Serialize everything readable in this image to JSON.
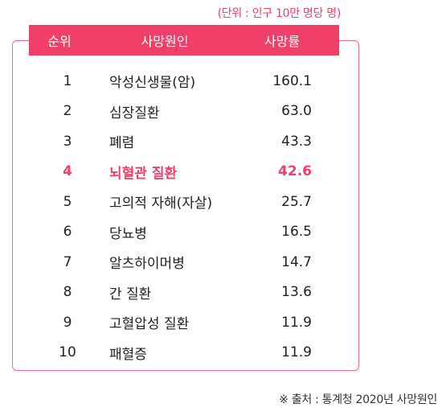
{
  "unit_note": "(단위 : 인구 10만 명당 명)",
  "header": {
    "rank": "순위",
    "cause": "사망원인",
    "rate": "사망률"
  },
  "rows": [
    {
      "rank": "1",
      "cause": "악성신생물(암)",
      "rate": "160.1"
    },
    {
      "rank": "2",
      "cause": "심장질환",
      "rate": "63.0"
    },
    {
      "rank": "3",
      "cause": "폐렴",
      "rate": "43.3"
    },
    {
      "rank": "4",
      "cause": "뇌혈관 질환",
      "rate": "42.6"
    },
    {
      "rank": "5",
      "cause": "고의적 자해(자살)",
      "rate": "25.7"
    },
    {
      "rank": "6",
      "cause": "당뇨병",
      "rate": "16.5"
    },
    {
      "rank": "7",
      "cause": "알츠하이머병",
      "rate": "14.7"
    },
    {
      "rank": "8",
      "cause": "간 질환",
      "rate": "13.6"
    },
    {
      "rank": "9",
      "cause": "고혈압성 질환",
      "rate": "11.9"
    },
    {
      "rank": "10",
      "cause": "패혈증",
      "rate": "11.9"
    }
  ],
  "highlight_rank": "4",
  "colors": {
    "accent": "#f0406a",
    "border": "#f06a8a"
  },
  "source_note": "※ 출처 : 통계청 2020년 사망원인"
}
